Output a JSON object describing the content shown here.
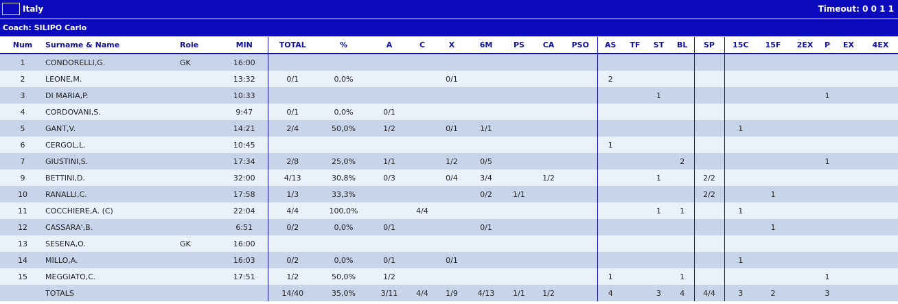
{
  "team": {
    "name": "Italy",
    "timeout_label": "Timeout:",
    "timeouts": "0 0 1 1",
    "flag_colors": [
      "#009246",
      "#ffffff",
      "#ce2b37"
    ]
  },
  "coach": {
    "label": "Coach: SILIPO Carlo"
  },
  "columns": [
    "Num",
    "Surname & Name",
    "Role",
    "MIN",
    "TOTAL",
    "%",
    "A",
    "C",
    "X",
    "6M",
    "PS",
    "CA",
    "PSO",
    "AS",
    "TF",
    "ST",
    "BL",
    "SP",
    "15C",
    "15F",
    "2EX",
    "P",
    "EX",
    "4EX"
  ],
  "rows": [
    [
      "1",
      "CONDORELLI,G.",
      "GK",
      "16:00",
      "",
      "",
      "",
      "",
      "",
      "",
      "",
      "",
      "",
      "",
      "",
      "",
      "",
      "",
      "",
      "",
      "",
      "",
      "",
      ""
    ],
    [
      "2",
      "LEONE,M.",
      "",
      "13:32",
      "0/1",
      "0,0%",
      "",
      "",
      "0/1",
      "",
      "",
      "",
      "",
      "2",
      "",
      "",
      "",
      "",
      "",
      "",
      "",
      "",
      "",
      ""
    ],
    [
      "3",
      "DI MARIA,P.",
      "",
      "10:33",
      "",
      "",
      "",
      "",
      "",
      "",
      "",
      "",
      "",
      "",
      "",
      "1",
      "",
      "",
      "",
      "",
      "",
      "1",
      "",
      ""
    ],
    [
      "4",
      "CORDOVANI,S.",
      "",
      "9:47",
      "0/1",
      "0,0%",
      "0/1",
      "",
      "",
      "",
      "",
      "",
      "",
      "",
      "",
      "",
      "",
      "",
      "",
      "",
      "",
      "",
      "",
      ""
    ],
    [
      "5",
      "GANT,V.",
      "",
      "14:21",
      "2/4",
      "50,0%",
      "1/2",
      "",
      "0/1",
      "1/1",
      "",
      "",
      "",
      "",
      "",
      "",
      "",
      "",
      "1",
      "",
      "",
      "",
      "",
      ""
    ],
    [
      "6",
      "CERGOL,L.",
      "",
      "10:45",
      "",
      "",
      "",
      "",
      "",
      "",
      "",
      "",
      "",
      "1",
      "",
      "",
      "",
      "",
      "",
      "",
      "",
      "",
      "",
      ""
    ],
    [
      "7",
      "GIUSTINI,S.",
      "",
      "17:34",
      "2/8",
      "25,0%",
      "1/1",
      "",
      "1/2",
      "0/5",
      "",
      "",
      "",
      "",
      "",
      "",
      "2",
      "",
      "",
      "",
      "",
      "1",
      "",
      ""
    ],
    [
      "9",
      "BETTINI,D.",
      "",
      "32:00",
      "4/13",
      "30,8%",
      "0/3",
      "",
      "0/4",
      "3/4",
      "",
      "1/2",
      "",
      "",
      "",
      "1",
      "",
      "2/2",
      "",
      "",
      "",
      "",
      "",
      ""
    ],
    [
      "10",
      "RANALLI,C.",
      "",
      "17:58",
      "1/3",
      "33,3%",
      "",
      "",
      "",
      "0/2",
      "1/1",
      "",
      "",
      "",
      "",
      "",
      "",
      "2/2",
      "",
      "1",
      "",
      "",
      "",
      ""
    ],
    [
      "11",
      "COCCHIERE,A.  (C)",
      "",
      "22:04",
      "4/4",
      "100,0%",
      "",
      "4/4",
      "",
      "",
      "",
      "",
      "",
      "",
      "",
      "1",
      "1",
      "",
      "1",
      "",
      "",
      "",
      "",
      ""
    ],
    [
      "12",
      "CASSARA',B.",
      "",
      "6:51",
      "0/2",
      "0,0%",
      "0/1",
      "",
      "",
      "0/1",
      "",
      "",
      "",
      "",
      "",
      "",
      "",
      "",
      "",
      "1",
      "",
      "",
      "",
      ""
    ],
    [
      "13",
      "SESENA,O.",
      "GK",
      "16:00",
      "",
      "",
      "",
      "",
      "",
      "",
      "",
      "",
      "",
      "",
      "",
      "",
      "",
      "",
      "",
      "",
      "",
      "",
      "",
      ""
    ],
    [
      "14",
      "MILLO,A.",
      "",
      "16:03",
      "0/2",
      "0,0%",
      "0/1",
      "",
      "0/1",
      "",
      "",
      "",
      "",
      "",
      "",
      "",
      "",
      "",
      "1",
      "",
      "",
      "",
      "",
      ""
    ],
    [
      "15",
      "MEGGIATO,C.",
      "",
      "17:51",
      "1/2",
      "50,0%",
      "1/2",
      "",
      "",
      "",
      "",
      "",
      "",
      "1",
      "",
      "",
      "1",
      "",
      "",
      "",
      "",
      "1",
      "",
      ""
    ]
  ],
  "totals": [
    "",
    "TOTALS",
    "",
    "",
    "14/40",
    "35,0%",
    "3/11",
    "4/4",
    "1/9",
    "4/13",
    "1/1",
    "1/2",
    "",
    "4",
    "",
    "3",
    "4",
    "4/4",
    "3",
    "2",
    "",
    "3",
    "",
    ""
  ]
}
